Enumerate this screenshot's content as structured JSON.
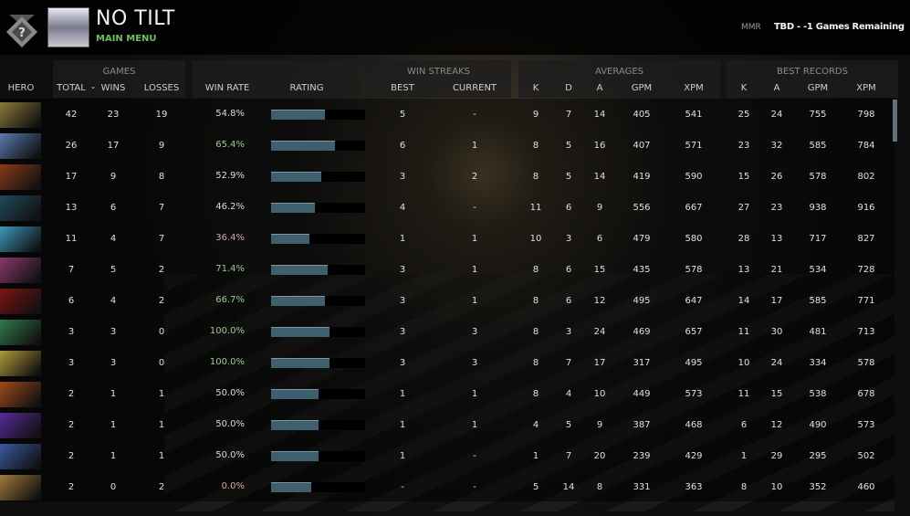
{
  "header": {
    "title": "NO TILT",
    "subtitle": "MAIN MENU",
    "mmr_label": "MMR",
    "mmr_value": "TBD - -1 Games Remaining",
    "rank_icon": "question-medal-icon"
  },
  "groups": {
    "games": "GAMES",
    "win_streaks": "WIN STREAKS",
    "averages": "AVERAGES",
    "best_records": "BEST RECORDS"
  },
  "columns": {
    "hero": "HERO",
    "total": "TOTAL",
    "sort_icon": "⌄",
    "wins": "WINS",
    "losses": "LOSSES",
    "win_rate": "WIN RATE",
    "rating": "RATING",
    "best": "BEST",
    "current": "CURRENT",
    "k": "K",
    "d": "D",
    "a": "A",
    "gpm": "GPM",
    "xpm": "XPM",
    "br_k": "K",
    "br_a": "A",
    "br_gpm": "GPM",
    "br_xpm": "XPM"
  },
  "colors": {
    "win_high": "#9ccb95",
    "win_low": "#d2a9a9",
    "win_neutral": "#dcdcdc",
    "rating_fill": "#3f5f6e"
  },
  "rows": [
    {
      "hero_color": "#8a7a3a",
      "total": "42",
      "wins": "23",
      "losses": "19",
      "win_rate": "54.8%",
      "rating": 0.57,
      "best": "5",
      "current": "-",
      "k": "9",
      "d": "7",
      "a": "14",
      "gpm": "405",
      "xpm": "541",
      "br_k": "25",
      "br_a": "24",
      "br_gpm": "755",
      "br_xpm": "798"
    },
    {
      "hero_color": "#5a7ab0",
      "total": "26",
      "wins": "17",
      "losses": "9",
      "win_rate": "65.4%",
      "rating": 0.68,
      "best": "6",
      "current": "1",
      "k": "8",
      "d": "5",
      "a": "16",
      "gpm": "407",
      "xpm": "571",
      "br_k": "23",
      "br_a": "32",
      "br_gpm": "585",
      "br_xpm": "784"
    },
    {
      "hero_color": "#8a3a1a",
      "total": "17",
      "wins": "9",
      "losses": "8",
      "win_rate": "52.9%",
      "rating": 0.53,
      "best": "3",
      "current": "2",
      "k": "8",
      "d": "5",
      "a": "14",
      "gpm": "419",
      "xpm": "590",
      "br_k": "15",
      "br_a": "26",
      "br_gpm": "578",
      "br_xpm": "802"
    },
    {
      "hero_color": "#1f4a5a",
      "total": "13",
      "wins": "6",
      "losses": "7",
      "win_rate": "46.2%",
      "rating": 0.47,
      "best": "4",
      "current": "-",
      "k": "11",
      "d": "6",
      "a": "9",
      "gpm": "556",
      "xpm": "667",
      "br_k": "27",
      "br_a": "23",
      "br_gpm": "938",
      "br_xpm": "916"
    },
    {
      "hero_color": "#3a9ab8",
      "total": "11",
      "wins": "4",
      "losses": "7",
      "win_rate": "36.4%",
      "rating": 0.41,
      "best": "1",
      "current": "1",
      "k": "10",
      "d": "3",
      "a": "6",
      "gpm": "479",
      "xpm": "580",
      "br_k": "28",
      "br_a": "13",
      "br_gpm": "717",
      "br_xpm": "827"
    },
    {
      "hero_color": "#8a3a6a",
      "total": "7",
      "wins": "5",
      "losses": "2",
      "win_rate": "71.4%",
      "rating": 0.6,
      "best": "3",
      "current": "1",
      "k": "8",
      "d": "6",
      "a": "15",
      "gpm": "435",
      "xpm": "578",
      "br_k": "13",
      "br_a": "21",
      "br_gpm": "534",
      "br_xpm": "728"
    },
    {
      "hero_color": "#7a1414",
      "total": "6",
      "wins": "4",
      "losses": "2",
      "win_rate": "66.7%",
      "rating": 0.57,
      "best": "3",
      "current": "1",
      "k": "8",
      "d": "6",
      "a": "12",
      "gpm": "495",
      "xpm": "647",
      "br_k": "14",
      "br_a": "17",
      "br_gpm": "585",
      "br_xpm": "771"
    },
    {
      "hero_color": "#2e7a4a",
      "total": "3",
      "wins": "3",
      "losses": "0",
      "win_rate": "100.0%",
      "rating": 0.62,
      "best": "3",
      "current": "3",
      "k": "8",
      "d": "3",
      "a": "24",
      "gpm": "469",
      "xpm": "657",
      "br_k": "11",
      "br_a": "30",
      "br_gpm": "481",
      "br_xpm": "713"
    },
    {
      "hero_color": "#b09a3a",
      "total": "3",
      "wins": "3",
      "losses": "0",
      "win_rate": "100.0%",
      "rating": 0.62,
      "best": "3",
      "current": "3",
      "k": "8",
      "d": "7",
      "a": "17",
      "gpm": "317",
      "xpm": "495",
      "br_k": "10",
      "br_a": "24",
      "br_gpm": "334",
      "br_xpm": "578"
    },
    {
      "hero_color": "#a04a1a",
      "total": "2",
      "wins": "1",
      "losses": "1",
      "win_rate": "50.0%",
      "rating": 0.5,
      "best": "1",
      "current": "1",
      "k": "8",
      "d": "4",
      "a": "10",
      "gpm": "449",
      "xpm": "573",
      "br_k": "11",
      "br_a": "15",
      "br_gpm": "538",
      "br_xpm": "678"
    },
    {
      "hero_color": "#5a2a9a",
      "total": "2",
      "wins": "1",
      "losses": "1",
      "win_rate": "50.0%",
      "rating": 0.5,
      "best": "1",
      "current": "1",
      "k": "4",
      "d": "5",
      "a": "9",
      "gpm": "387",
      "xpm": "468",
      "br_k": "6",
      "br_a": "12",
      "br_gpm": "490",
      "br_xpm": "573"
    },
    {
      "hero_color": "#3a5aa0",
      "total": "2",
      "wins": "1",
      "losses": "1",
      "win_rate": "50.0%",
      "rating": 0.5,
      "best": "1",
      "current": "-",
      "k": "1",
      "d": "7",
      "a": "20",
      "gpm": "239",
      "xpm": "429",
      "br_k": "1",
      "br_a": "29",
      "br_gpm": "295",
      "br_xpm": "502"
    },
    {
      "hero_color": "#a07a3a",
      "total": "2",
      "wins": "0",
      "losses": "2",
      "win_rate": "0.0%",
      "rating": 0.43,
      "best": "-",
      "current": "-",
      "k": "5",
      "d": "14",
      "a": "8",
      "gpm": "331",
      "xpm": "363",
      "br_k": "8",
      "br_a": "10",
      "br_gpm": "352",
      "br_xpm": "460"
    }
  ]
}
